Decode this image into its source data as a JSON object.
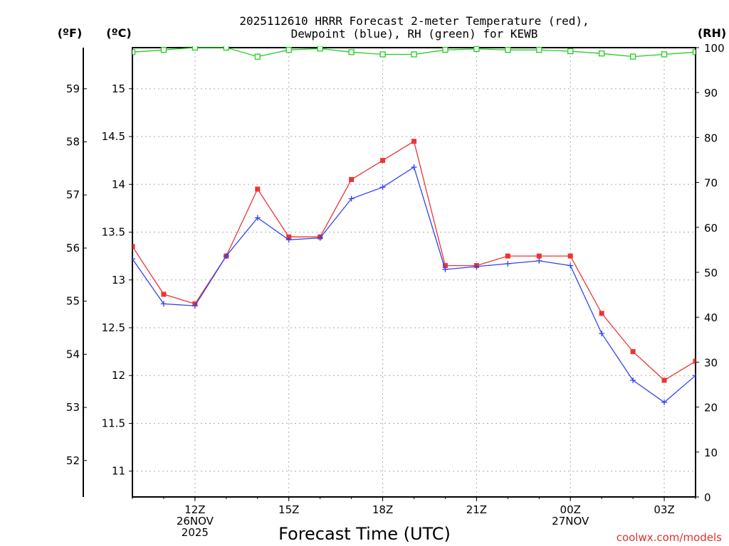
{
  "chart_data": {
    "type": "line",
    "title_line1": "2025112610 HRRR Forecast 2-meter Temperature (red),",
    "title_line2": "Dewpoint (blue), RH (green) for KEWB",
    "xlabel": "Forecast Time (UTC)",
    "units": {
      "fahrenheit": "(ºF)",
      "celsius": "(ºC)",
      "rh": "(RH)"
    },
    "credit": "coolwx.com/models",
    "x_hours": [
      10,
      11,
      12,
      13,
      14,
      15,
      16,
      17,
      18,
      19,
      20,
      21,
      22,
      23,
      24,
      25,
      26,
      27,
      28
    ],
    "x_range": [
      10,
      28
    ],
    "x_ticks": [
      {
        "hour": 12,
        "lines": [
          "12Z",
          "26NOV",
          "2025"
        ]
      },
      {
        "hour": 15,
        "lines": [
          "15Z"
        ]
      },
      {
        "hour": 18,
        "lines": [
          "18Z"
        ]
      },
      {
        "hour": 21,
        "lines": [
          "21Z"
        ]
      },
      {
        "hour": 24,
        "lines": [
          "00Z",
          "27NOV"
        ]
      },
      {
        "hour": 27,
        "lines": [
          "03Z"
        ]
      }
    ],
    "celsius_range": [
      10.73,
      15.43
    ],
    "celsius_ticks": [
      "11",
      "11.5",
      "12",
      "12.5",
      "13",
      "13.5",
      "14",
      "14.5",
      "15"
    ],
    "fahrenheit_ticks": [
      "52",
      "53",
      "54",
      "55",
      "56",
      "57",
      "58",
      "59"
    ],
    "rh_range": [
      0,
      100
    ],
    "rh_ticks": [
      "0",
      "10",
      "20",
      "30",
      "40",
      "50",
      "60",
      "70",
      "80",
      "90",
      "100"
    ],
    "grid": true,
    "series": [
      {
        "name": "Temperature",
        "color": "#ee3333",
        "marker": "filled-square",
        "values": [
          13.35,
          12.85,
          12.75,
          13.25,
          13.95,
          13.45,
          13.45,
          14.05,
          14.25,
          14.45,
          13.15,
          13.15,
          13.25,
          13.25,
          13.25,
          12.65,
          12.25,
          11.95,
          12.15
        ]
      },
      {
        "name": "Dewpoint",
        "color": "#3344ee",
        "marker": "plus",
        "values": [
          13.22,
          12.75,
          12.73,
          13.25,
          13.65,
          13.42,
          13.44,
          13.85,
          13.97,
          14.18,
          13.11,
          13.14,
          13.17,
          13.2,
          13.15,
          12.44,
          11.95,
          11.72,
          12.0
        ]
      },
      {
        "name": "RH",
        "color": "#22cc22",
        "marker": "open-square",
        "values": [
          99,
          99.5,
          100,
          100,
          98,
          99.5,
          99.8,
          99,
          98.5,
          98.5,
          99.5,
          99.7,
          99.5,
          99.5,
          99.2,
          98.7,
          98,
          98.5,
          99
        ]
      }
    ]
  }
}
